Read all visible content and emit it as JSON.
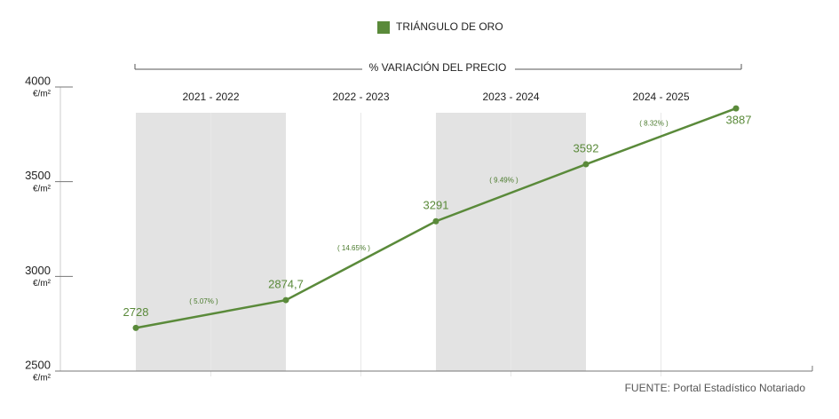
{
  "chart_data": {
    "type": "line",
    "legend_header": "% VARIACIÓN DEL PRECIO",
    "periods": [
      "2021 - 2022",
      "2022 - 2023",
      "2023 - 2024",
      "2024 - 2025"
    ],
    "categories": [
      null,
      null,
      null,
      null,
      null
    ],
    "series": [
      {
        "name": "TRIÁNGULO DE ORO",
        "color": "#5a8a3a",
        "values": [
          2728,
          2874.7,
          3291,
          3592,
          3887
        ],
        "value_labels": [
          "2728",
          "2874,7",
          "3291",
          "3592",
          "3887"
        ]
      }
    ],
    "variations": {
      "values": [
        5.07,
        14.65,
        9.49,
        8.32
      ],
      "value_labels": [
        "( 5.07% )",
        "( 14.65% )",
        "( 9.49% )",
        "( 8.32% )"
      ]
    },
    "y_unit": "€/m²",
    "ylim": [
      2500,
      4000
    ],
    "yticks": [
      2500,
      3000,
      3500,
      4000
    ],
    "source": "FUENTE: Portal Estadístico Notariado"
  }
}
